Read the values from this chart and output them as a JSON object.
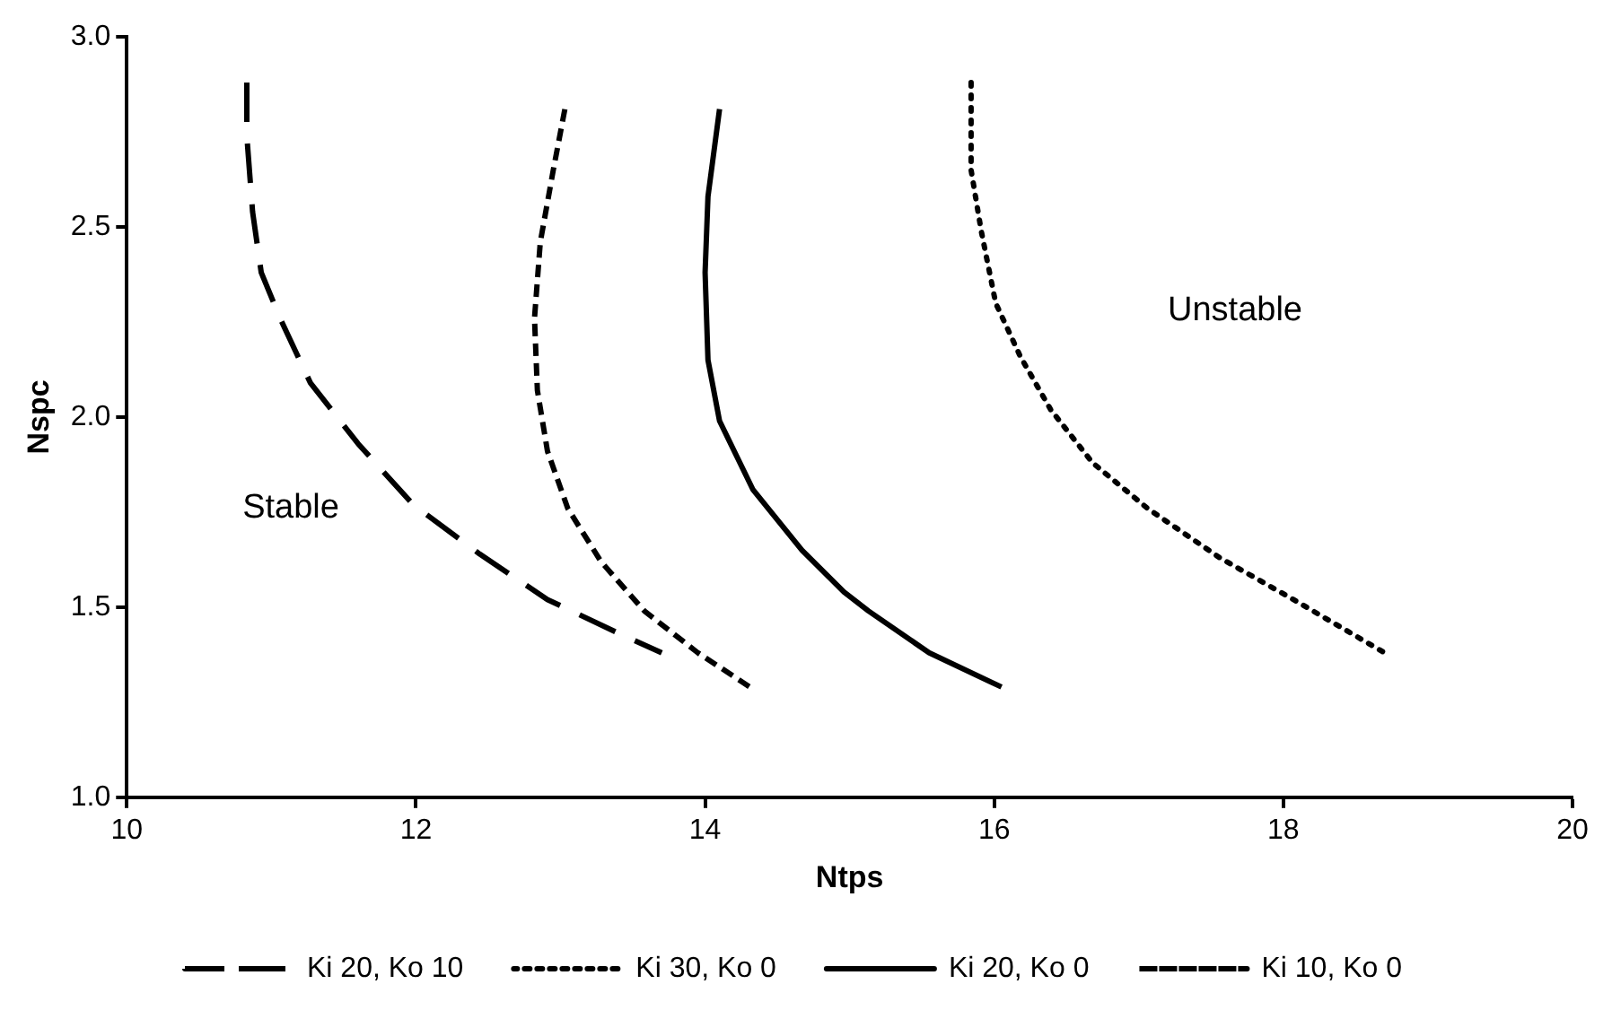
{
  "chart_data": {
    "type": "line",
    "xlabel": "Ntps",
    "ylabel": "Nspc",
    "xlim": [
      10,
      20
    ],
    "xticks": [
      10,
      12,
      14,
      16,
      18,
      20
    ],
    "ylim": [
      1,
      3
    ],
    "yticks": [
      {
        "value": 1,
        "label": "1.0"
      },
      {
        "value": 1.5,
        "label": "1.5"
      },
      {
        "value": 2,
        "label": "2.0"
      },
      {
        "value": 2.5,
        "label": "2.5"
      },
      {
        "value": 3,
        "label": "3.0"
      }
    ],
    "grid": false,
    "legend": "bottom",
    "marker": "none",
    "annotations": [
      "Stable",
      "Unstable"
    ],
    "series": [
      {
        "name": "Ki 20, Ko 10",
        "color": "#000000",
        "line_style": "dashed",
        "x": [
          10.83,
          10.83,
          10.87,
          10.93,
          11.06,
          11.27,
          11.6,
          11.98,
          12.44,
          12.91,
          13.41,
          13.7
        ],
        "values": [
          2.88,
          2.74,
          2.54,
          2.38,
          2.26,
          2.09,
          1.93,
          1.77,
          1.64,
          1.52,
          1.43,
          1.38
        ]
      },
      {
        "name": "Ki 30, Ko 0",
        "color": "#000000",
        "line_style": "dotted",
        "x": [
          15.84,
          15.84,
          15.91,
          16.01,
          16.18,
          16.39,
          16.68,
          17.06,
          17.56,
          18.07,
          18.7
        ],
        "values": [
          2.88,
          2.65,
          2.49,
          2.3,
          2.16,
          2.02,
          1.88,
          1.76,
          1.63,
          1.52,
          1.38
        ]
      },
      {
        "name": "Ki 20, Ko 0",
        "color": "#000000",
        "line_style": "solid",
        "x": [
          14.1,
          14.02,
          14.0,
          14.02,
          14.1,
          14.33,
          14.67,
          14.96,
          15.13,
          15.55,
          16.05
        ],
        "values": [
          2.81,
          2.58,
          2.38,
          2.15,
          1.99,
          1.81,
          1.65,
          1.54,
          1.49,
          1.38,
          1.29
        ]
      },
      {
        "name": "Ki 10, Ko 0",
        "color": "#000000",
        "line_style": "dashed",
        "x": [
          13.03,
          12.95,
          12.86,
          12.82,
          12.84,
          12.91,
          13.05,
          13.28,
          13.58,
          13.95,
          14.31
        ],
        "values": [
          2.81,
          2.65,
          2.46,
          2.26,
          2.07,
          1.91,
          1.76,
          1.62,
          1.49,
          1.38,
          1.29
        ]
      }
    ]
  }
}
